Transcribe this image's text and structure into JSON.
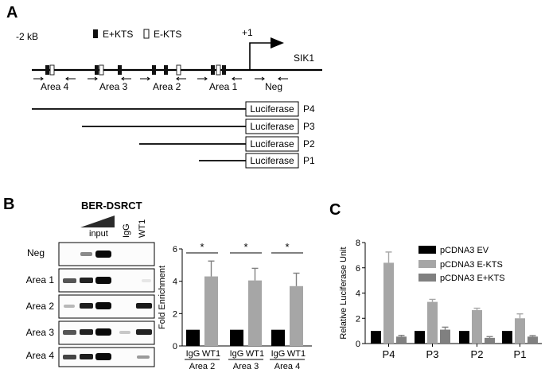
{
  "panel_a": {
    "label": "A",
    "scale_label": "-2 kB",
    "legend": [
      {
        "name": "E+KTS",
        "fill": "#111111"
      },
      {
        "name": "E-KTS",
        "fill": "#ffffff"
      }
    ],
    "tss_label": "+1",
    "gene_label": "SIK1",
    "areas": [
      "Area 4",
      "Area 3",
      "Area 2",
      "Area 1",
      "Neg"
    ],
    "constructs": [
      {
        "box": "Luciferase",
        "name": "P4"
      },
      {
        "box": "Luciferase",
        "name": "P3"
      },
      {
        "box": "Luciferase",
        "name": "P2"
      },
      {
        "box": "Luciferase",
        "name": "P1"
      }
    ]
  },
  "panel_b": {
    "label": "B",
    "cell_line": "BER-DSRCT",
    "input_label": "input",
    "lane_labels": [
      "IgG",
      "WT1"
    ],
    "rows": [
      "Neg",
      "Area 1",
      "Area 2",
      "Area 3",
      "Area 4"
    ]
  },
  "panel_c": {
    "label": "C"
  },
  "chart_data": [
    {
      "type": "bar",
      "ylabel": "Fold Enrichment",
      "ylim": [
        0,
        6
      ],
      "yticks": [
        "0",
        "2",
        "4",
        "6"
      ],
      "bar_labels": [
        "IgG",
        "WT1",
        "IgG",
        "WT1",
        "IgG",
        "WT1"
      ],
      "groups": [
        "Area 2",
        "Area 3",
        "Area 4"
      ],
      "values": [
        1,
        4.3,
        1,
        4.05,
        1,
        3.7
      ],
      "errors": [
        0,
        0.95,
        0,
        0.75,
        0,
        0.8
      ],
      "significance": [
        "*",
        "*",
        "*"
      ],
      "colors": [
        "#000000",
        "#a6a6a6"
      ]
    },
    {
      "type": "bar",
      "ylabel": "Relative Luciferase Unit",
      "ylim": [
        0,
        8
      ],
      "yticks": [
        "0",
        "2",
        "4",
        "6",
        "8"
      ],
      "categories": [
        "P4",
        "P3",
        "P2",
        "P1"
      ],
      "series": [
        {
          "name": "pCDNA3 EV",
          "color": "#000000",
          "values": [
            1,
            1,
            1,
            1
          ],
          "errors": [
            0,
            0,
            0,
            0
          ]
        },
        {
          "name": "pCDNA3 E-KTS",
          "color": "#a6a6a6",
          "values": [
            6.4,
            3.3,
            2.65,
            2.0
          ],
          "errors": [
            0.85,
            0.2,
            0.15,
            0.35
          ]
        },
        {
          "name": "pCDNA3 E+KTS",
          "color": "#808080",
          "values": [
            0.55,
            1.1,
            0.45,
            0.55
          ],
          "errors": [
            0.1,
            0.2,
            0.1,
            0.08
          ]
        }
      ],
      "legend_position": "top-right"
    }
  ]
}
